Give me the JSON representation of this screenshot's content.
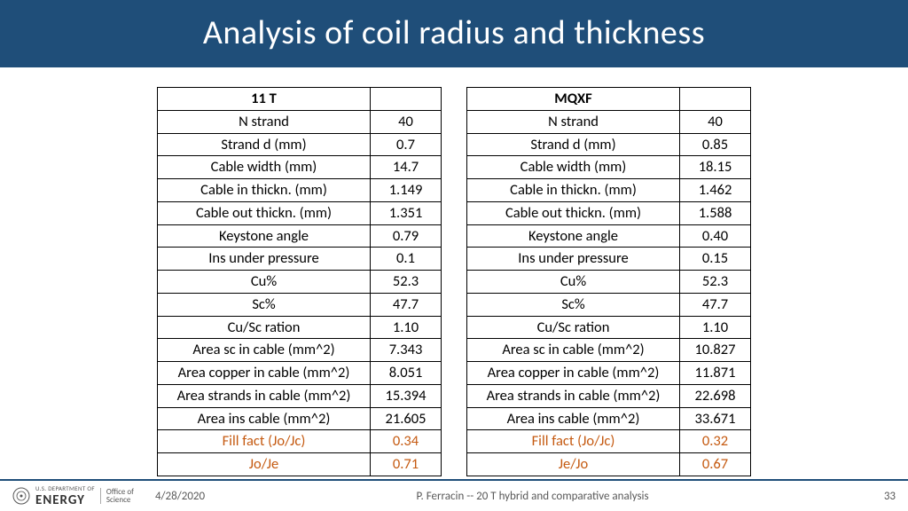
{
  "title": "Analysis of coil radius and thickness",
  "tables": [
    {
      "header": "11 T",
      "rows": [
        {
          "label": "N strand",
          "value": "40"
        },
        {
          "label": "Strand d (mm)",
          "value": "0.7"
        },
        {
          "label": "Cable width (mm)",
          "value": "14.7"
        },
        {
          "label": "Cable in thickn. (mm)",
          "value": "1.149"
        },
        {
          "label": "Cable out thickn. (mm)",
          "value": "1.351"
        },
        {
          "label": "Keystone angle",
          "value": "0.79"
        },
        {
          "label": "Ins under pressure",
          "value": "0.1"
        },
        {
          "label": "Cu%",
          "value": "52.3"
        },
        {
          "label": "Sc%",
          "value": "47.7"
        },
        {
          "label": "Cu/Sc ration",
          "value": "1.10"
        },
        {
          "label": "Area sc in cable (mm^2)",
          "value": "7.343"
        },
        {
          "label": "Area copper in cable  (mm^2)",
          "value": "8.051"
        },
        {
          "label": "Area strands in cable  (mm^2)",
          "value": "15.394"
        },
        {
          "label": "Area ins cable  (mm^2)",
          "value": "21.605"
        },
        {
          "label": "Fill fact (Jo/Jc)",
          "value": "0.34",
          "highlight": true
        },
        {
          "label": "Jo/Je",
          "value": "0.71",
          "highlight": true
        }
      ]
    },
    {
      "header": "MQXF",
      "rows": [
        {
          "label": "N strand",
          "value": "40"
        },
        {
          "label": "Strand d (mm)",
          "value": "0.85"
        },
        {
          "label": "Cable width (mm)",
          "value": "18.15"
        },
        {
          "label": "Cable in thickn. (mm)",
          "value": "1.462"
        },
        {
          "label": "Cable out thickn. (mm)",
          "value": "1.588"
        },
        {
          "label": "Keystone angle",
          "value": "0.40"
        },
        {
          "label": "Ins under pressure",
          "value": "0.15"
        },
        {
          "label": "Cu%",
          "value": "52.3"
        },
        {
          "label": "Sc%",
          "value": "47.7"
        },
        {
          "label": "Cu/Sc ration",
          "value": "1.10"
        },
        {
          "label": "Area sc in cable (mm^2)",
          "value": "10.827"
        },
        {
          "label": "Area copper in cable  (mm^2)",
          "value": "11.871"
        },
        {
          "label": "Area strands in cable  (mm^2)",
          "value": "22.698"
        },
        {
          "label": "Area ins cable  (mm^2)",
          "value": "33.671"
        },
        {
          "label": "Fill fact (Jo/Jc)",
          "value": "0.32",
          "highlight": true
        },
        {
          "label": "Je/Jo",
          "value": "0.67",
          "highlight": true
        }
      ]
    }
  ],
  "footer": {
    "logo_dept": "U.S. DEPARTMENT OF",
    "logo_energy": "ENERGY",
    "logo_office_l1": "Office of",
    "logo_office_l2": "Science",
    "date": "4/28/2020",
    "center": "P. Ferracin -- 20 T hybrid and comparative analysis",
    "page": "33"
  },
  "style": {
    "title_bg": "#1f4e79",
    "title_color": "#ffffff",
    "highlight_color": "#c55a11",
    "border_color": "#000000",
    "footer_rule": "#1f4e79",
    "footer_text": "#595959"
  }
}
